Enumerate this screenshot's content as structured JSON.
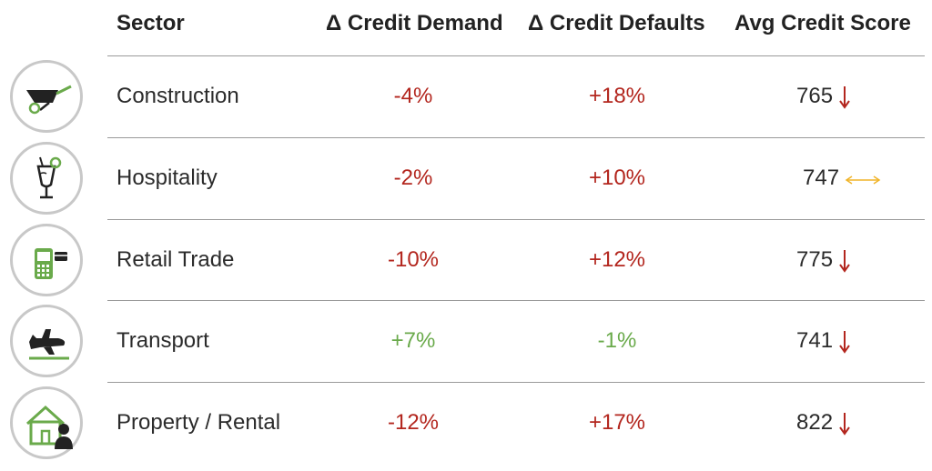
{
  "header": {
    "sector": "Sector",
    "credit_demand": "Δ Credit Demand",
    "credit_defaults": "Δ Credit Defaults",
    "avg_score": "Avg Credit Score"
  },
  "colors": {
    "negative": "#b3261e",
    "positive": "#6aaa4b",
    "neutral_arrow": "#f0b429",
    "icon_green": "#6aaa4b",
    "icon_dark": "#222222"
  },
  "rows": [
    {
      "sector": "Construction",
      "icon": "wheelbarrow-icon",
      "demand": "-4%",
      "defaults": "+18%",
      "score": "765",
      "trend": "down"
    },
    {
      "sector": "Hospitality",
      "icon": "cocktail-icon",
      "demand": "-2%",
      "defaults": "+10%",
      "score": "747",
      "trend": "flat"
    },
    {
      "sector": "Retail Trade",
      "icon": "card-terminal-icon",
      "demand": "-10%",
      "defaults": "+12%",
      "score": "775",
      "trend": "down"
    },
    {
      "sector": "Transport",
      "icon": "airplane-icon",
      "demand": "+7%",
      "defaults": "-1%",
      "score": "741",
      "trend": "down"
    },
    {
      "sector": "Property / Rental",
      "icon": "house-person-icon",
      "demand": "-12%",
      "defaults": "+17%",
      "score": "822",
      "trend": "down"
    }
  ]
}
